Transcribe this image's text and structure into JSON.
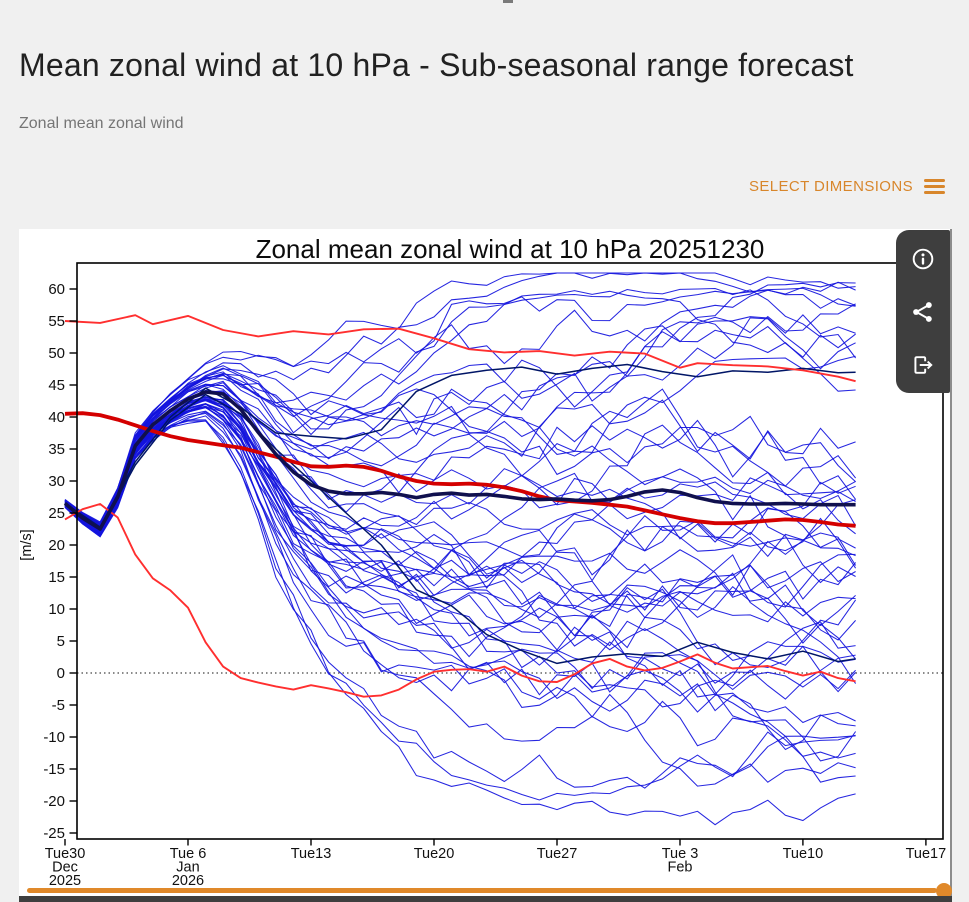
{
  "page": {
    "background": "#f0f0f0",
    "scroll_notch_color": "#7a7a7a"
  },
  "header": {
    "title": "Mean zonal wind at 10 hPa - Sub-seasonal range forecast",
    "subtitle": "Zonal mean zonal wind",
    "title_color": "#212121",
    "subtitle_color": "#757575"
  },
  "controls": {
    "select_dimensions_label": "SELECT DIMENSIONS",
    "accent_color": "#d8862b"
  },
  "toolbar": {
    "background": "#3e3e3e",
    "icon_color": "#ffffff",
    "buttons": [
      "info",
      "share",
      "export"
    ]
  },
  "footer": {
    "slider_color": "#e0892a",
    "scrollbar_color": "#3f3f3f"
  },
  "chart_data": {
    "type": "line",
    "title": "Zonal mean zonal wind at 10 hPa 20251230",
    "ylabel": "[m/s]",
    "ylim": [
      -26,
      64
    ],
    "yticks": [
      60,
      55,
      50,
      45,
      40,
      35,
      30,
      25,
      20,
      15,
      10,
      5,
      0,
      -5,
      -10,
      -15,
      -20,
      -25
    ],
    "zero_reference_line": true,
    "forecast_length_days": 45,
    "x_axis": {
      "tick_days": [
        0,
        7,
        14,
        21,
        28,
        35,
        42,
        49
      ],
      "tick_labels": [
        [
          "Tue30",
          "Dec",
          "2025"
        ],
        [
          "Tue 6",
          "Jan",
          "2026"
        ],
        [
          "Tue13"
        ],
        [
          "Tue20"
        ],
        [
          "Tue27"
        ],
        [
          "Tue 3",
          "Feb"
        ],
        [
          "Tue10"
        ],
        [
          "Tue17"
        ]
      ]
    },
    "series": [
      {
        "id": "climatology_upper",
        "name": "climatology upper percentile",
        "color": "#ff2f2f",
        "width": 1.9,
        "days": [
          0,
          2,
          4,
          5,
          7,
          9,
          11,
          13,
          15,
          17,
          19,
          21,
          23,
          25,
          27,
          29,
          31,
          33,
          35,
          36,
          38,
          40,
          42,
          44,
          45
        ],
        "values": [
          55,
          54.7,
          55.9,
          54.5,
          55.8,
          53.6,
          52.6,
          53.4,
          52.9,
          53.7,
          53.8,
          52.3,
          50.6,
          50.1,
          50.3,
          49.6,
          50.2,
          49.9,
          47.7,
          48.4,
          48.1,
          47.9,
          47.3,
          46.3,
          45.6
        ]
      },
      {
        "id": "climatology_lower",
        "name": "climatology lower percentile",
        "color": "#ff2f2f",
        "width": 1.9,
        "days": [
          0,
          1,
          2,
          3,
          4,
          5,
          6,
          7,
          8,
          9,
          10,
          11,
          12,
          13,
          14,
          15,
          16,
          17,
          18,
          19,
          20,
          21,
          22,
          23,
          24,
          25,
          26,
          27,
          28,
          29,
          30,
          31,
          32,
          33,
          34,
          35,
          36,
          37,
          38,
          39,
          40,
          41,
          42,
          43,
          44,
          45
        ],
        "values": [
          24,
          25.6,
          26.4,
          24.3,
          18.5,
          14.8,
          12.9,
          10.2,
          4.8,
          1.0,
          -0.8,
          -1.5,
          -2.1,
          -2.6,
          -1.9,
          -2.4,
          -3.0,
          -3.7,
          -3.5,
          -2.6,
          -1.0,
          0.2,
          0.5,
          0.6,
          0.2,
          1.0,
          -0.4,
          -1.3,
          -1.4,
          -0.2,
          1.5,
          2.2,
          1.0,
          0.4,
          0.8,
          1.8,
          2.9,
          1.6,
          0.7,
          0.9,
          1.1,
          0.3,
          -0.4,
          0.2,
          -0.8,
          -1.3
        ]
      },
      {
        "id": "climatology_median",
        "name": "climatological median",
        "color": "#d40000",
        "width": 3.8,
        "days": [
          0,
          1,
          2,
          3,
          4,
          5,
          6,
          7,
          8,
          9,
          10,
          11,
          12,
          13,
          14,
          15,
          16,
          17,
          18,
          19,
          20,
          21,
          22,
          23,
          24,
          25,
          26,
          27,
          28,
          29,
          30,
          31,
          32,
          33,
          34,
          35,
          36,
          37,
          38,
          39,
          40,
          41,
          42,
          43,
          44,
          45
        ],
        "values": [
          40.5,
          40.6,
          40.3,
          39.6,
          38.7,
          37.8,
          37,
          36.4,
          36,
          35.6,
          35.2,
          34.5,
          33.8,
          33,
          32.3,
          32.2,
          32.4,
          32.2,
          31.6,
          30.7,
          30,
          29.6,
          29.5,
          29.6,
          29.4,
          29,
          28.4,
          27.6,
          27,
          26.8,
          26.6,
          26.3,
          26,
          25.4,
          24.8,
          24.2,
          23.7,
          23.4,
          23.4,
          23.6,
          23.8,
          24,
          23.9,
          23.6,
          23.2,
          23
        ]
      },
      {
        "id": "ensemble_mean",
        "name": "ensemble mean",
        "color": "#10104e",
        "width": 3.6,
        "days": [
          0,
          1,
          2,
          3,
          4,
          5,
          6,
          7,
          8,
          9,
          10,
          11,
          12,
          13,
          14,
          15,
          16,
          17,
          18,
          19,
          20,
          21,
          22,
          23,
          24,
          25,
          26,
          27,
          28,
          29,
          30,
          31,
          32,
          33,
          34,
          35,
          36,
          37,
          38,
          39,
          40,
          41,
          42,
          43,
          44,
          45
        ],
        "values": [
          26.5,
          24.2,
          22.5,
          27.5,
          35.5,
          38.8,
          41,
          42.8,
          43.9,
          43.6,
          41.2,
          37.6,
          34.2,
          31.4,
          29.4,
          28.4,
          28,
          28,
          28.2,
          27.9,
          27.4,
          27.9,
          28.1,
          27.8,
          27.9,
          27.6,
          27.2,
          27.1,
          27.2,
          27,
          26.9,
          27.1,
          27.6,
          28.3,
          28.6,
          28.2,
          27.4,
          26.8,
          26.5,
          26.4,
          26.4,
          26.5,
          26.4,
          26.3,
          26.3,
          26.3
        ]
      },
      {
        "id": "dark_member_a",
        "name": "control member (upper)",
        "color": "#001566",
        "width": 1.5,
        "days": [
          0,
          2,
          4,
          6,
          8,
          10,
          12,
          14,
          16,
          18,
          20,
          22,
          24,
          26,
          28,
          30,
          32,
          34,
          36,
          38,
          40,
          42,
          44,
          45
        ],
        "values": [
          26.5,
          22.8,
          33,
          40,
          44.5,
          41.5,
          37.5,
          37,
          36.6,
          38,
          44,
          46.5,
          47.3,
          47.8,
          46.7,
          47.6,
          48.2,
          47.1,
          46.3,
          47.2,
          47,
          47.6,
          46.9,
          47
        ]
      },
      {
        "id": "dark_member_b",
        "name": "control member (lower)",
        "color": "#001566",
        "width": 1.5,
        "days": [
          0,
          2,
          4,
          6,
          8,
          10,
          12,
          14,
          16,
          18,
          20,
          22,
          24,
          26,
          28,
          30,
          32,
          34,
          36,
          38,
          40,
          42,
          44,
          45
        ],
        "values": [
          26.6,
          22.4,
          32.5,
          39.5,
          43.5,
          40.5,
          35,
          30,
          25,
          20,
          13,
          10.5,
          6,
          3.5,
          1.5,
          2.5,
          3,
          2.6,
          4.8,
          3.2,
          2.2,
          3.4,
          1.8,
          2.2
        ]
      }
    ],
    "ensemble": {
      "name": "ensemble members",
      "count": 50,
      "color": "#1414dd",
      "width": 1.05,
      "seed": 20251230,
      "halfwidth_days": [
        0,
        2,
        4,
        6,
        8,
        10,
        12,
        14,
        16,
        18,
        20,
        22,
        24,
        26,
        28,
        30,
        32,
        34,
        36,
        38,
        40,
        42,
        44,
        45
      ],
      "halfwidth_values": [
        0.5,
        0.9,
        1.5,
        2.1,
        3.2,
        6.5,
        11,
        14,
        16.5,
        18,
        20,
        22,
        23.5,
        24.5,
        25.5,
        26,
        26,
        26.5,
        27,
        27,
        27.5,
        28,
        28,
        28
      ]
    }
  }
}
